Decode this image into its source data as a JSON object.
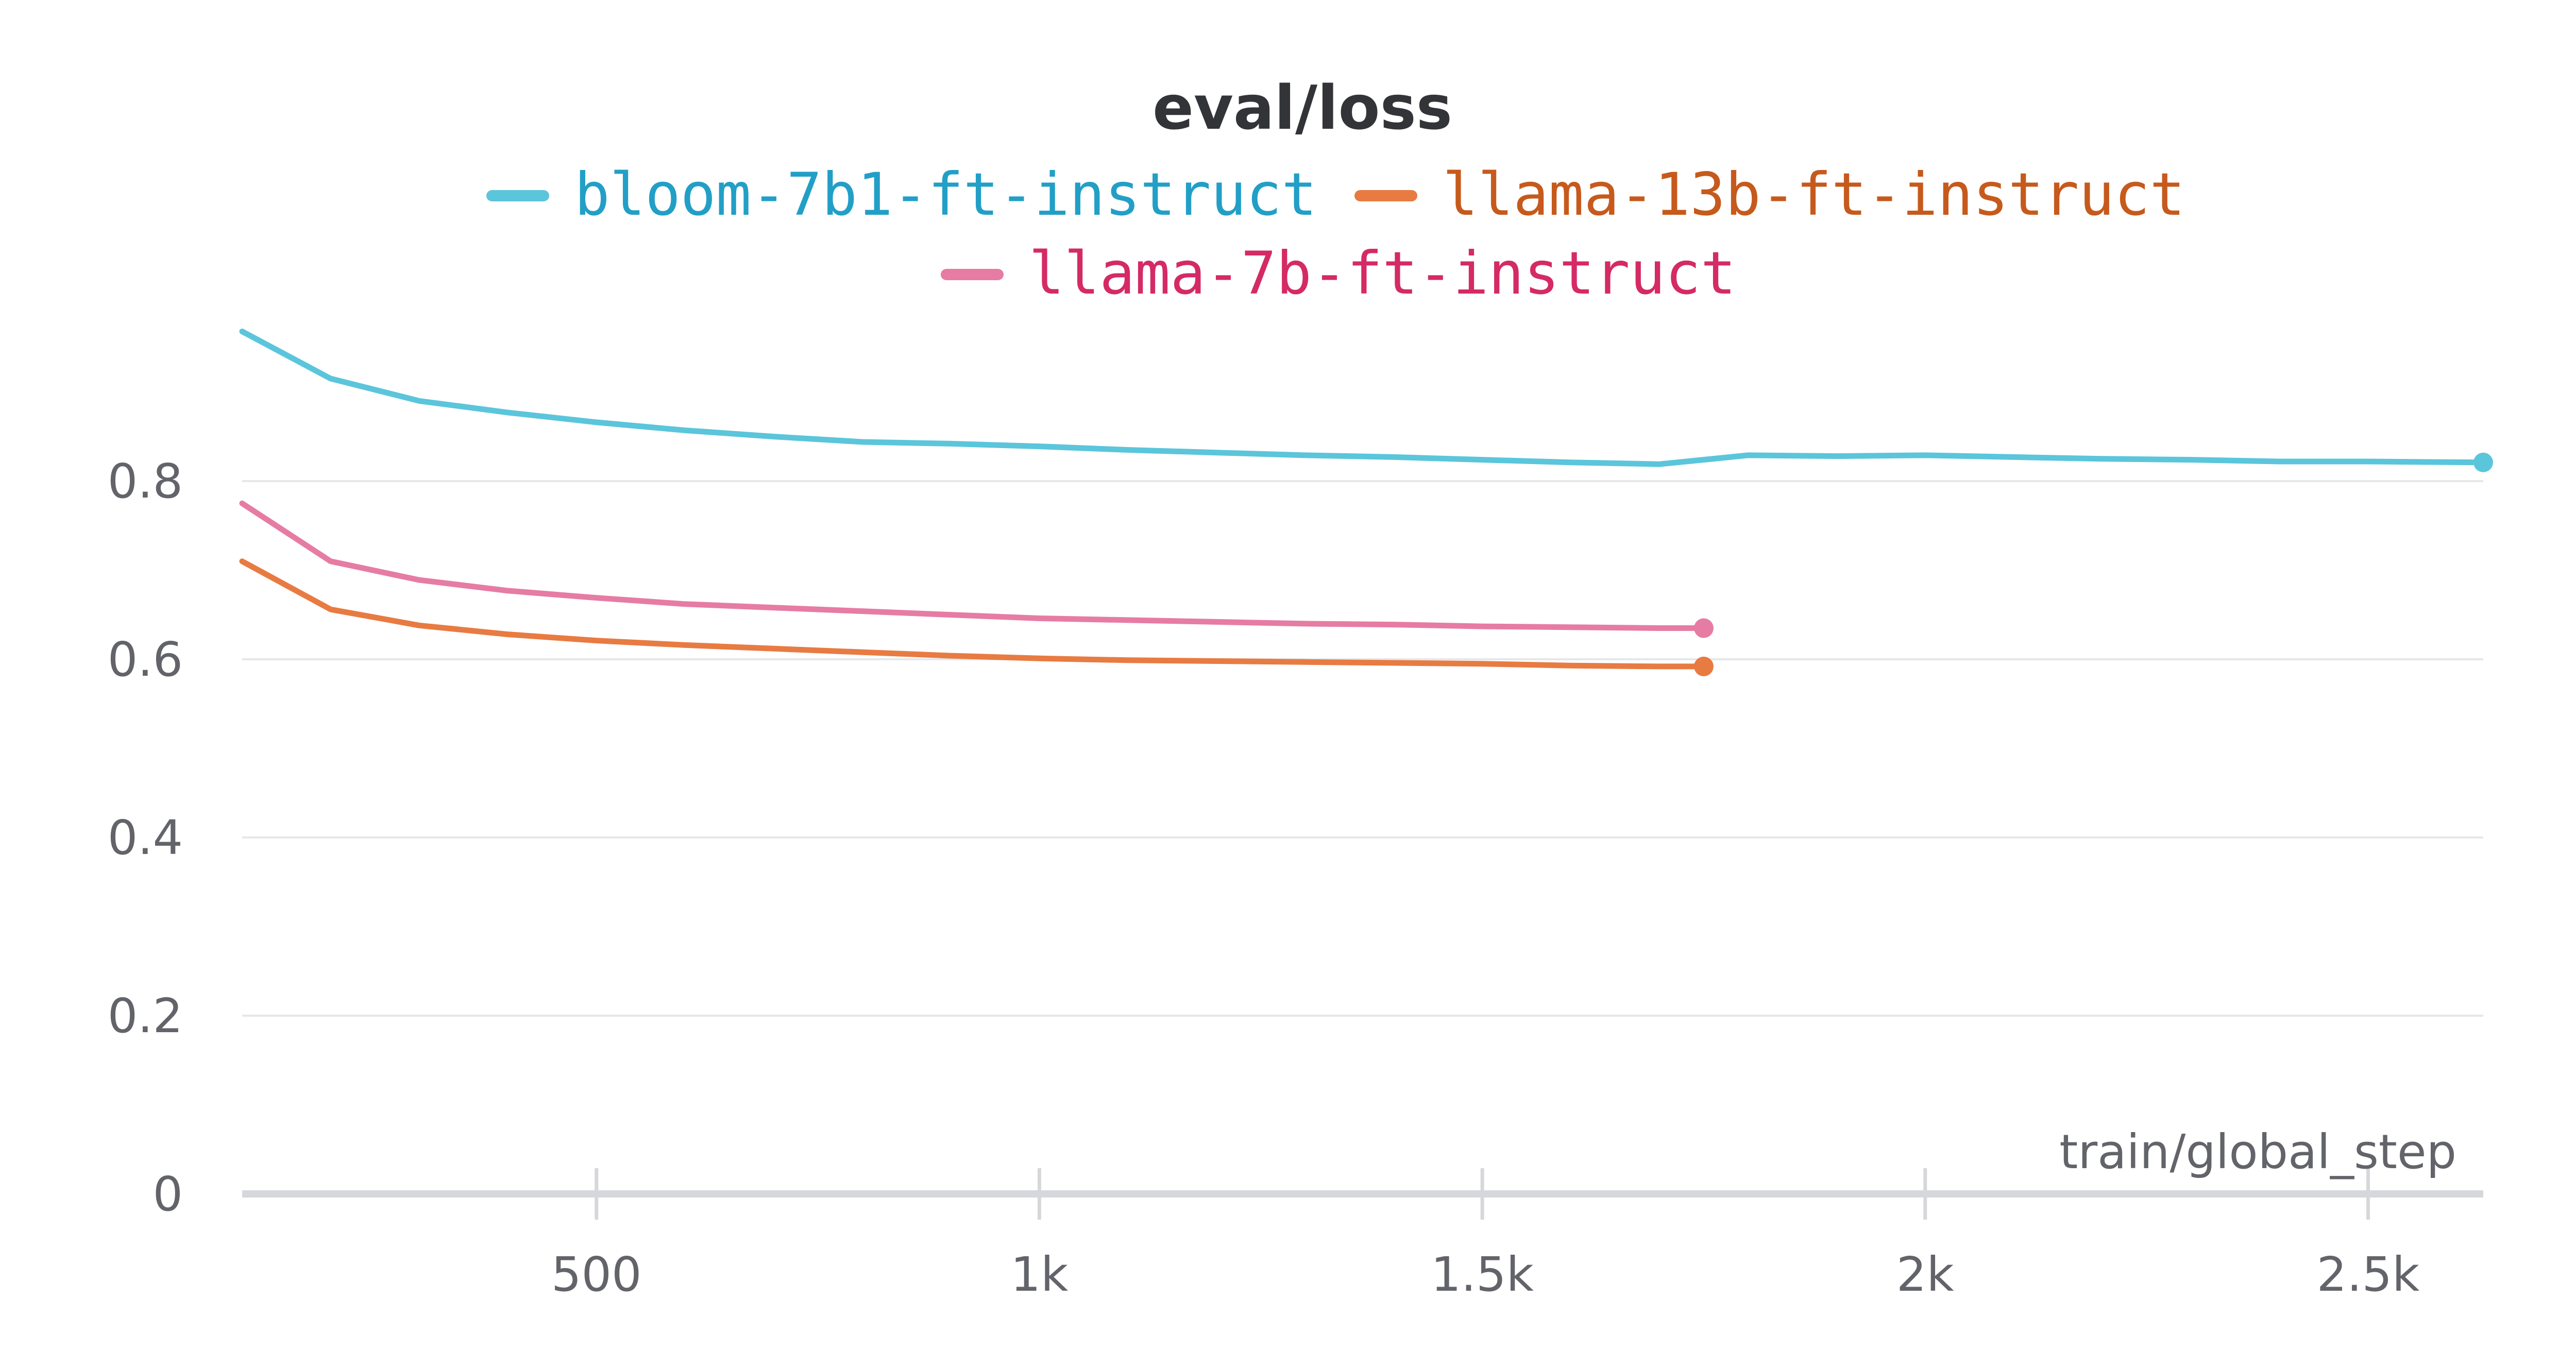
{
  "chart_data": {
    "type": "line",
    "title": "eval/loss",
    "xlabel": "train/global_step",
    "ylabel": "",
    "xlim": [
      100,
      2630
    ],
    "ylim": [
      0,
      0.97
    ],
    "x_ticks": [
      {
        "value": 500,
        "label": "500"
      },
      {
        "value": 1000,
        "label": "1k"
      },
      {
        "value": 1500,
        "label": "1.5k"
      },
      {
        "value": 2000,
        "label": "2k"
      },
      {
        "value": 2500,
        "label": "2.5k"
      }
    ],
    "y_ticks": [
      {
        "value": 0,
        "label": "0"
      },
      {
        "value": 0.2,
        "label": "0.2"
      },
      {
        "value": 0.4,
        "label": "0.4"
      },
      {
        "value": 0.6,
        "label": "0.6"
      },
      {
        "value": 0.8,
        "label": "0.8"
      }
    ],
    "grid": "horizontal",
    "legend_position": "top-center",
    "series": [
      {
        "name": "bloom-7b1-ft-instruct",
        "color": "#5bc5db",
        "text_color": "#229fc6",
        "points": [
          [
            100,
            0.968
          ],
          [
            200,
            0.915
          ],
          [
            300,
            0.89
          ],
          [
            400,
            0.877
          ],
          [
            500,
            0.866
          ],
          [
            600,
            0.857
          ],
          [
            700,
            0.85
          ],
          [
            800,
            0.844
          ],
          [
            900,
            0.842
          ],
          [
            1000,
            0.839
          ],
          [
            1100,
            0.835
          ],
          [
            1200,
            0.832
          ],
          [
            1300,
            0.829
          ],
          [
            1400,
            0.827
          ],
          [
            1500,
            0.824
          ],
          [
            1600,
            0.821
          ],
          [
            1700,
            0.819
          ],
          [
            1800,
            0.829
          ],
          [
            1900,
            0.828
          ],
          [
            2000,
            0.829
          ],
          [
            2100,
            0.827
          ],
          [
            2200,
            0.825
          ],
          [
            2300,
            0.824
          ],
          [
            2400,
            0.822
          ],
          [
            2500,
            0.822
          ],
          [
            2630,
            0.821
          ]
        ]
      },
      {
        "name": "llama-13b-ft-instruct",
        "color": "#e87b42",
        "text_color": "#c65a1c",
        "points": [
          [
            100,
            0.71
          ],
          [
            200,
            0.656
          ],
          [
            300,
            0.638
          ],
          [
            400,
            0.628
          ],
          [
            500,
            0.621
          ],
          [
            600,
            0.616
          ],
          [
            700,
            0.612
          ],
          [
            800,
            0.608
          ],
          [
            900,
            0.604
          ],
          [
            1000,
            0.601
          ],
          [
            1100,
            0.599
          ],
          [
            1200,
            0.598
          ],
          [
            1300,
            0.597
          ],
          [
            1400,
            0.596
          ],
          [
            1500,
            0.595
          ],
          [
            1600,
            0.593
          ],
          [
            1700,
            0.592
          ],
          [
            1750,
            0.592
          ]
        ]
      },
      {
        "name": "llama-7b-ft-instruct",
        "color": "#e67ca3",
        "text_color": "#d42a65",
        "points": [
          [
            100,
            0.775
          ],
          [
            200,
            0.71
          ],
          [
            300,
            0.689
          ],
          [
            400,
            0.677
          ],
          [
            500,
            0.669
          ],
          [
            600,
            0.662
          ],
          [
            700,
            0.658
          ],
          [
            800,
            0.654
          ],
          [
            900,
            0.65
          ],
          [
            1000,
            0.646
          ],
          [
            1100,
            0.644
          ],
          [
            1200,
            0.642
          ],
          [
            1300,
            0.64
          ],
          [
            1400,
            0.639
          ],
          [
            1500,
            0.637
          ],
          [
            1600,
            0.636
          ],
          [
            1700,
            0.635
          ],
          [
            1750,
            0.635
          ]
        ]
      }
    ]
  }
}
